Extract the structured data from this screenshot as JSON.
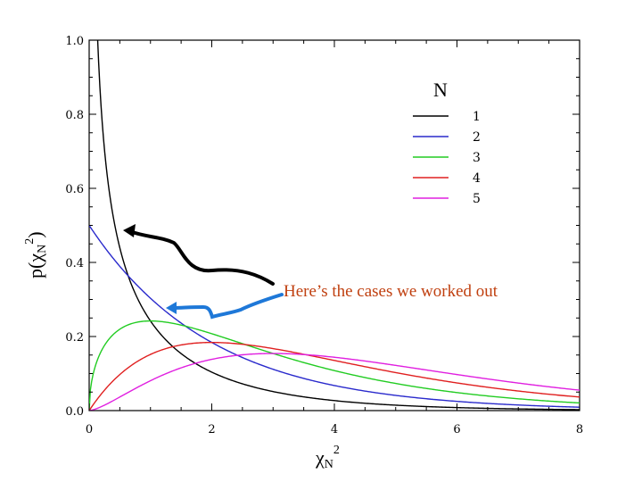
{
  "chart_data": {
    "type": "line",
    "title": "",
    "xlabel": {
      "base": "χ",
      "sub": "N",
      "sup": "2"
    },
    "ylabel": {
      "pre": "p(",
      "base": "χ",
      "sub": "N",
      "sup": "2",
      "post": ")"
    },
    "xlim": [
      0,
      8
    ],
    "ylim": [
      0,
      1.0
    ],
    "xticks": [
      "0",
      "2",
      "4",
      "6",
      "8"
    ],
    "xtick_values": [
      0,
      2,
      4,
      6,
      8
    ],
    "yticks": [
      "0.0",
      "0.2",
      "0.4",
      "0.6",
      "0.8",
      "1.0"
    ],
    "ytick_values": [
      0,
      0.2,
      0.4,
      0.6,
      0.8,
      1.0
    ],
    "grid": false,
    "legend": {
      "title": "N",
      "position": "top-right"
    },
    "series": [
      {
        "name": "1",
        "color": "#000000",
        "N": 1,
        "x": [
          0.06,
          0.1,
          0.2,
          0.3,
          0.5,
          0.75,
          1,
          1.5,
          2,
          3,
          4,
          5,
          6,
          7,
          8
        ],
        "y": [
          1.0,
          1.2,
          0.81,
          0.63,
          0.44,
          0.32,
          0.24,
          0.15,
          0.1,
          0.05,
          0.03,
          0.01,
          0.01,
          0.0,
          0.0
        ]
      },
      {
        "name": "2",
        "color": "#2a2acc",
        "N": 2,
        "x": [
          0,
          0.5,
          1,
          1.5,
          2,
          3,
          4,
          5,
          6,
          7,
          8
        ],
        "y": [
          0.5,
          0.39,
          0.3,
          0.24,
          0.18,
          0.11,
          0.07,
          0.04,
          0.02,
          0.02,
          0.01
        ]
      },
      {
        "name": "3",
        "color": "#22cc22",
        "N": 3,
        "x": [
          0,
          0.25,
          0.5,
          1,
          1.5,
          2,
          3,
          4,
          5,
          6,
          7,
          8
        ],
        "y": [
          0.0,
          0.18,
          0.22,
          0.24,
          0.23,
          0.21,
          0.15,
          0.11,
          0.07,
          0.05,
          0.03,
          0.02
        ]
      },
      {
        "name": "4",
        "color": "#e02020",
        "N": 4,
        "x": [
          0,
          0.5,
          1,
          1.5,
          2,
          2.5,
          3,
          4,
          5,
          6,
          7,
          8
        ],
        "y": [
          0.0,
          0.1,
          0.15,
          0.18,
          0.18,
          0.18,
          0.17,
          0.14,
          0.1,
          0.07,
          0.05,
          0.04
        ]
      },
      {
        "name": "5",
        "color": "#e020e0",
        "N": 5,
        "x": [
          0,
          0.5,
          1,
          1.5,
          2,
          2.5,
          3,
          4,
          5,
          6,
          7,
          8
        ],
        "y": [
          0.0,
          0.04,
          0.08,
          0.12,
          0.14,
          0.15,
          0.15,
          0.14,
          0.12,
          0.09,
          0.07,
          0.05
        ]
      }
    ],
    "annotation": {
      "text": "Here’s the cases we worked out",
      "color": "#c04010"
    }
  }
}
